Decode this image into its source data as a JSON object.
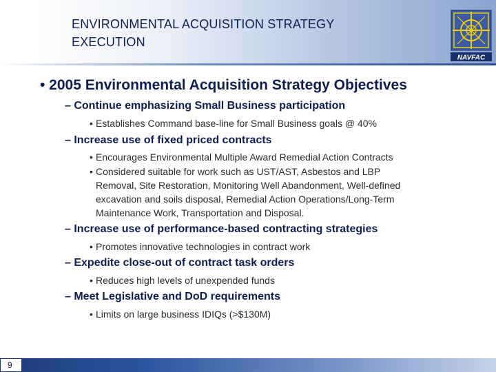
{
  "slide": {
    "title_line1": "ENVIRONMENTAL ACQUISITION STRATEGY",
    "title_line2": "EXECUTION",
    "logo_text": "NAVFAC",
    "page_number": "9"
  },
  "outline": {
    "main_bullet": "• 2005 Environmental Acquisition Strategy Objectives",
    "sections": [
      {
        "heading": "– Continue emphasizing Small Business participation",
        "items": [
          [
            "Establishes Command base-line for Small Business goals @ 40%"
          ]
        ]
      },
      {
        "heading": "– Increase use of fixed priced contracts",
        "items": [
          [
            "Encourages Environmental Multiple Award Remedial Action Contracts"
          ],
          [
            "Considered suitable for work such as UST/AST, Asbestos and LBP",
            "Removal, Site Restoration, Monitoring Well Abandonment, Well-defined",
            "excavation and soils disposal, Remedial Action Operations/Long-Term",
            "Maintenance Work, Transportation and Disposal."
          ]
        ]
      },
      {
        "heading": "– Increase use of performance-based contracting strategies",
        "items": [
          [
            "Promotes innovative technologies in contract work"
          ]
        ]
      },
      {
        "heading": "– Expedite close-out of contract task orders",
        "items": [
          [
            "Reduces high levels of unexpended funds"
          ]
        ]
      },
      {
        "heading": "– Meet Legislative and DoD requirements",
        "items": [
          [
            "Limits on large business IDIQs (>$130M)"
          ]
        ]
      }
    ]
  }
}
